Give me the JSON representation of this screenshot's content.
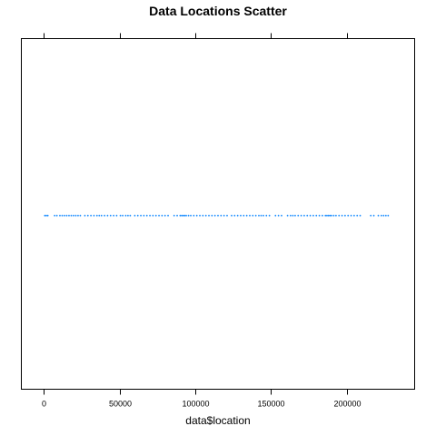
{
  "chart_data": {
    "type": "scatter",
    "title": "Data Locations Scatter",
    "xlabel": "data$location",
    "ylabel": "",
    "xlim": [
      -15000,
      245000
    ],
    "x_ticks": [
      0,
      50000,
      100000,
      150000,
      200000
    ],
    "x_tick_labels": [
      "0",
      "50000",
      "100000",
      "150000",
      "200000"
    ],
    "grid": false,
    "point_color": "#0080ff",
    "series": [
      {
        "values": [
          500,
          1500,
          2500,
          7000,
          8500,
          10500,
          12000,
          13500,
          15000,
          16500,
          18000,
          19500,
          21000,
          22500,
          24000,
          27000,
          29000,
          31000,
          33000,
          35000,
          36500,
          38000,
          40000,
          42000,
          44000,
          46000,
          48000,
          50500,
          52000,
          54000,
          55500,
          57000,
          60000,
          62000,
          64000,
          66000,
          68000,
          70000,
          72000,
          74000,
          76000,
          78000,
          80000,
          82000,
          86000,
          88000,
          90000,
          91000,
          92000,
          93000,
          94000,
          95500,
          97000,
          99000,
          101000,
          103000,
          105000,
          107000,
          109000,
          111000,
          113000,
          115000,
          117000,
          119000,
          121000,
          124000,
          126000,
          128000,
          130000,
          132000,
          134000,
          136000,
          138000,
          140000,
          142000,
          143500,
          145000,
          147000,
          149000,
          153000,
          155000,
          157000,
          161000,
          163000,
          164500,
          166000,
          168000,
          170000,
          172000,
          174000,
          176000,
          178000,
          180000,
          182000,
          184000,
          186000,
          187000,
          188000,
          189000,
          190000,
          191500,
          193000,
          195000,
          197000,
          199000,
          201000,
          203000,
          205000,
          207000,
          209000,
          216000,
          218000,
          221000,
          223000,
          224500,
          226000,
          227500
        ]
      }
    ]
  }
}
